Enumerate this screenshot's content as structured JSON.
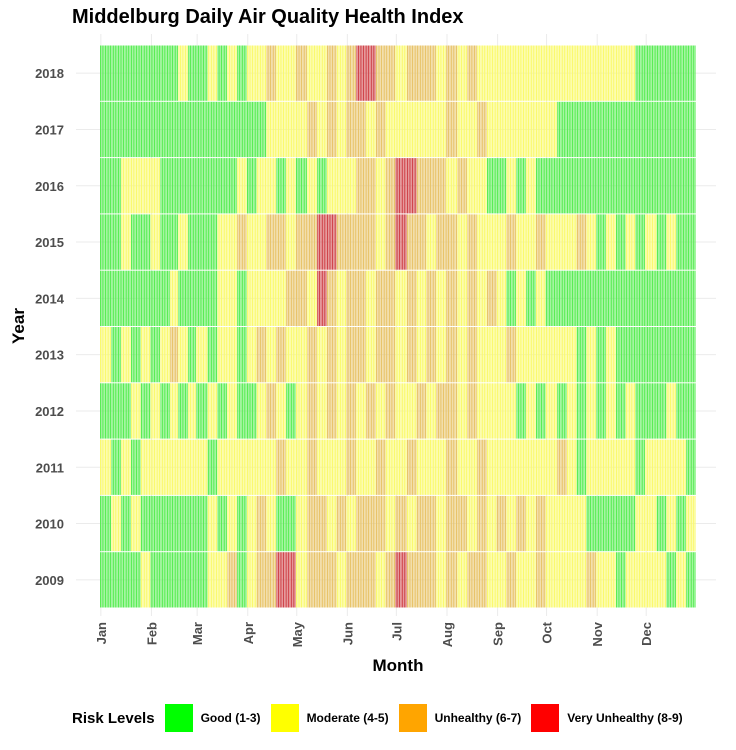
{
  "chart_data": {
    "type": "heatmap",
    "title": "Middelburg Daily Air Quality Health Index",
    "xlabel": "Month",
    "ylabel": "Year",
    "x_ticks": [
      "Jan",
      "Feb",
      "Mar",
      "Apr",
      "May",
      "Jun",
      "Jul",
      "Aug",
      "Sep",
      "Oct",
      "Nov",
      "Dec"
    ],
    "years": [
      2009,
      2010,
      2011,
      2012,
      2013,
      2014,
      2015,
      2016,
      2017,
      2018
    ],
    "days_per_year": 365,
    "legend_title": "Risk Levels",
    "levels": [
      {
        "name": "Good (1-3)",
        "color": "#00ff00"
      },
      {
        "name": "Moderate (4-5)",
        "color": "#ffff00"
      },
      {
        "name": "Unhealthy (6-7)",
        "color": "#ffa500"
      },
      {
        "name": "Very Unhealthy (8-9)",
        "color": "#ff0000"
      }
    ],
    "tile_colors": {
      "Good": "#5aed55",
      "Moderate": "#fafa6e",
      "Unhealthy": "#e8c46a",
      "Very Unhealthy": "#d0464b"
    },
    "grid": true,
    "legend_position": "bottom",
    "level_code": {
      "G": "Good",
      "M": "Moderate",
      "U": "Unhealthy",
      "V": "Very Unhealthy"
    },
    "monthly_levels": {
      "2009": [
        "GGGGM",
        "GGGGG",
        "GMMUG",
        "MUUVV",
        "MUUUM",
        "UUUMU",
        "VUUUM",
        "UMUUM",
        "MUMMU",
        "MMMMU",
        "MMGMM",
        "MMGMG"
      ],
      "2010": [
        "GMGMG",
        "GGGGG",
        "GMGMG",
        "MUMGG",
        "MUUMU",
        "MUUUM",
        "UMUUM",
        "UUMUM",
        "UMUMU",
        "MMMMG",
        "GGGGM",
        "MGMGM"
      ],
      "2011": [
        "MGMGM",
        "MMMMM",
        "MGMMM",
        "MMMUM",
        "MUMMM",
        "UMMUM",
        "MUMMM",
        "UMMUM",
        "MMMMM",
        "MUMGM",
        "MMMMG",
        "MMMMG"
      ],
      "2012": [
        "GGGMG",
        "MGMGM",
        "GMGMG",
        "GMUMG",
        "MUMUM",
        "UMUMU",
        "MMUMU",
        "UMUMM",
        "MMGMG",
        "MGMGM",
        "GMGMG",
        "GGMGG"
      ],
      "2013": [
        "MGMGM",
        "GMUMG",
        "MGMMG",
        "MUMUM",
        "MUMUM",
        "UUMUU",
        "MUMUM",
        "UMUMM",
        "MUMMM",
        "MMMGM",
        "GMGGG",
        "GGGGG"
      ],
      "2014": [
        "GGGGG",
        "GGMGG",
        "GGMMG",
        "MMMMU",
        "UMVUM",
        "UUMUU",
        "MUMUM",
        "UMUMU",
        "MGMGM",
        "GGGGG",
        "GGGGG",
        "GGGGG"
      ],
      "2015": [
        "GGMGG",
        "MGGMG",
        "GGMMU",
        "MMUUM",
        "UUVVU",
        "UUUMU",
        "VUUMU",
        "UMUMM",
        "MUMMU",
        "MMMUM",
        "GMGMG",
        "MGMGG"
      ],
      "2016": [
        "GGMMM",
        "MGGGG",
        "GGGGM",
        "GMMGM",
        "GMGMM",
        "MUUMU",
        "VVUUU",
        "MUMMG",
        "GMGMG",
        "GGGGG",
        "GGGGG",
        "GGGGG"
      ],
      "2017": [
        "GGGGG",
        "GGGGG",
        "GGGGG",
        "GGMMM",
        "MUMUM",
        "UUMUM",
        "MMMMM",
        "UMMUM",
        "MMMMM",
        "MGGGG",
        "GGGGG",
        "GGGGG"
      ],
      "2018": [
        "GGGGG",
        "GGGMG",
        "GMGMG",
        "MMUMM",
        "UMMUM",
        "UVVUU",
        "MUUUM",
        "UMUMM",
        "MMMMM",
        "MMMMM",
        "MMMMG",
        "GGGGG"
      ]
    }
  }
}
